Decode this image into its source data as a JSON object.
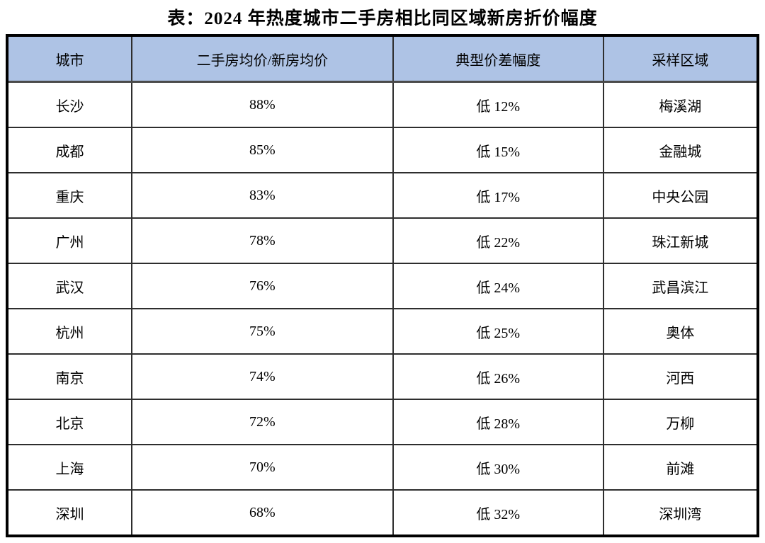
{
  "title": "表：2024 年热度城市二手房相比同区域新房折价幅度",
  "table": {
    "headers": [
      "城市",
      "二手房均价/新房均价",
      "典型价差幅度",
      "采样区域"
    ],
    "rows": [
      {
        "city": "长沙",
        "ratio": "88%",
        "gap": "低 12%",
        "area": "梅溪湖"
      },
      {
        "city": "成都",
        "ratio": "85%",
        "gap": "低 15%",
        "area": "金融城"
      },
      {
        "city": "重庆",
        "ratio": "83%",
        "gap": "低 17%",
        "area": "中央公园"
      },
      {
        "city": "广州",
        "ratio": "78%",
        "gap": "低 22%",
        "area": "珠江新城"
      },
      {
        "city": "武汉",
        "ratio": "76%",
        "gap": "低 24%",
        "area": "武昌滨江"
      },
      {
        "city": "杭州",
        "ratio": "75%",
        "gap": "低 25%",
        "area": "奥体"
      },
      {
        "city": "南京",
        "ratio": "74%",
        "gap": "低 26%",
        "area": "河西"
      },
      {
        "city": "北京",
        "ratio": "72%",
        "gap": "低 28%",
        "area": "万柳"
      },
      {
        "city": "上海",
        "ratio": "70%",
        "gap": "低 30%",
        "area": "前滩"
      },
      {
        "city": "深圳",
        "ratio": "68%",
        "gap": "低 32%",
        "area": "深圳湾"
      }
    ]
  },
  "colors": {
    "header_bg": "#aec3e5",
    "outer_border": "#000000",
    "grid_line": "#2e2e2e",
    "text": "#000000",
    "page_bg": "#ffffff"
  }
}
